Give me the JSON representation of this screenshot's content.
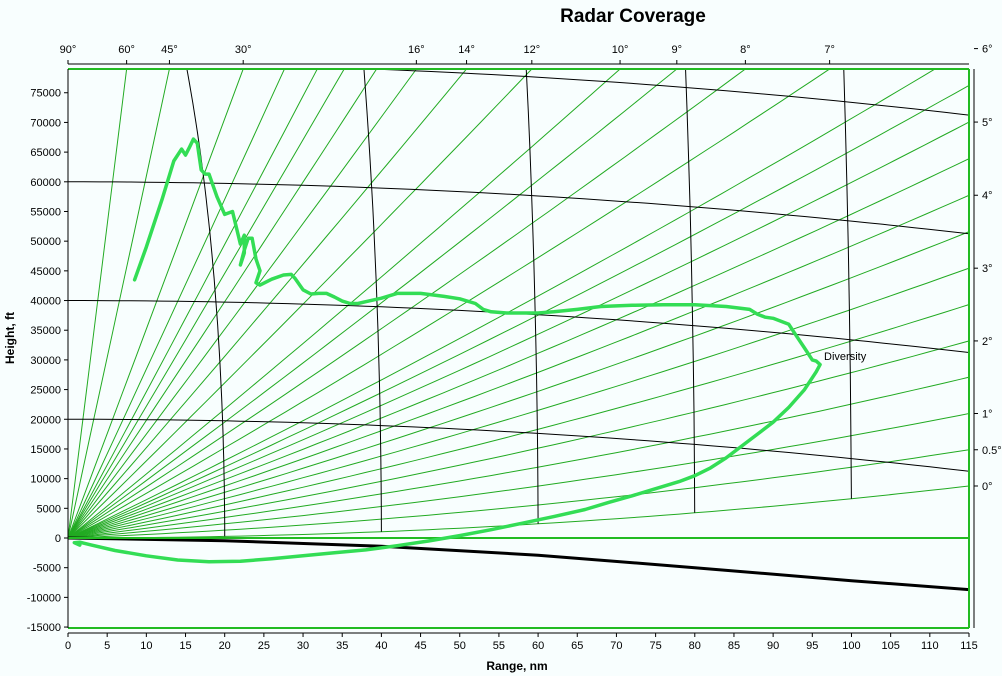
{
  "chart_data": {
    "type": "line",
    "title": "Radar Coverage",
    "xlabel": "Range, nm",
    "ylabel": "Height, ft",
    "xlim": [
      0,
      115
    ],
    "ylim": [
      -15000,
      79000
    ],
    "x_ticks": [
      0,
      5,
      10,
      15,
      20,
      25,
      30,
      35,
      40,
      45,
      50,
      55,
      60,
      65,
      70,
      75,
      80,
      85,
      90,
      95,
      100,
      105,
      110,
      115
    ],
    "y_ticks": [
      -15000,
      -10000,
      -5000,
      0,
      5000,
      10000,
      15000,
      20000,
      25000,
      30000,
      35000,
      40000,
      45000,
      50000,
      55000,
      60000,
      65000,
      70000,
      75000
    ],
    "elevation_angles_top": [
      {
        "label": "90°",
        "deg": 90
      },
      {
        "label": "60°",
        "deg": 60
      },
      {
        "label": "45°",
        "deg": 45
      },
      {
        "label": "30°",
        "deg": 30
      },
      {
        "label": "16°",
        "deg": 16
      },
      {
        "label": "14°",
        "deg": 14
      },
      {
        "label": "12°",
        "deg": 12
      },
      {
        "label": "10°",
        "deg": 10
      },
      {
        "label": "9°",
        "deg": 9
      },
      {
        "label": "8°",
        "deg": 8
      },
      {
        "label": "7°",
        "deg": 7
      }
    ],
    "elevation_angles_right": [
      {
        "label": "6°",
        "deg": 6
      },
      {
        "label": "5°",
        "deg": 5
      },
      {
        "label": "4°",
        "deg": 4
      },
      {
        "label": "3°",
        "deg": 3
      },
      {
        "label": "2°",
        "deg": 2
      },
      {
        "label": "1°",
        "deg": 1
      },
      {
        "label": "0.5°",
        "deg": 0.5
      },
      {
        "label": "0°",
        "deg": 0
      }
    ],
    "unlabeled_elevation_angles": [
      1.5,
      2.5,
      3.5,
      4.5,
      5.5,
      18,
      20,
      22,
      25
    ],
    "height_arcs_ft": [
      0,
      20000,
      40000,
      60000,
      80000
    ],
    "range_arcs_nm": [
      20,
      40,
      60,
      80,
      100
    ],
    "earth_curve": {
      "x": [
        0,
        20,
        40,
        60,
        80,
        100,
        115
      ],
      "y": [
        0,
        -450,
        -1400,
        -2900,
        -5000,
        -7200,
        -8700
      ]
    },
    "series": [
      {
        "name": "Diversity",
        "color": "#33dd55",
        "x": [
          8.5,
          10,
          12,
          13.5,
          14.5,
          15,
          15.5,
          16,
          16.5,
          17,
          17.5,
          18,
          19,
          20,
          21,
          22,
          22.5,
          22.5,
          22,
          22.5,
          23,
          23.5,
          24,
          24.5,
          24,
          24.5,
          26,
          27.5,
          28.5,
          29,
          30,
          31,
          32,
          33,
          34,
          35,
          36,
          37,
          38,
          40,
          42,
          45,
          48,
          50,
          52,
          53,
          54,
          56,
          58,
          60,
          62,
          65,
          68,
          72,
          76,
          80,
          84,
          87,
          88,
          89,
          90,
          92,
          93,
          94,
          95,
          95.5,
          96,
          95.5,
          94,
          92,
          90,
          88,
          86,
          84,
          82,
          80,
          78,
          75,
          72,
          69,
          66,
          62,
          58,
          54,
          50,
          46,
          42,
          38,
          34,
          30,
          26,
          22,
          18,
          14,
          10,
          6,
          3,
          1.5,
          0.8,
          1.5
        ],
        "y": [
          43500,
          49000,
          57000,
          63500,
          65500,
          64500,
          65800,
          67200,
          66500,
          62000,
          61300,
          61300,
          57500,
          54500,
          55000,
          49500,
          51000,
          48000,
          46000,
          48500,
          50500,
          50500,
          47000,
          45000,
          43000,
          42600,
          43600,
          44300,
          44400,
          43700,
          41800,
          41100,
          41200,
          41200,
          40600,
          39900,
          39500,
          39500,
          39800,
          40400,
          41200,
          41200,
          40700,
          40300,
          39500,
          38500,
          38100,
          37900,
          37900,
          37900,
          38100,
          38500,
          39000,
          39200,
          39300,
          39300,
          39000,
          38500,
          37700,
          37200,
          37000,
          36000,
          34000,
          32000,
          30000,
          29800,
          29200,
          28000,
          25000,
          22000,
          19500,
          17500,
          15500,
          13500,
          11800,
          10500,
          9500,
          8300,
          7100,
          6000,
          4800,
          3600,
          2500,
          1400,
          400,
          -500,
          -1300,
          -2000,
          -2500,
          -3000,
          -3500,
          -3900,
          -4000,
          -3700,
          -3000,
          -2100,
          -1200,
          -700,
          -800,
          -1200
        ]
      }
    ],
    "annotations": [
      {
        "text": "Diversity",
        "x": 96.5,
        "y": 30000
      }
    ],
    "grid": false
  },
  "colors": {
    "background": "#f8fefe",
    "angle_lines": "#22aa22",
    "frame": "#22bb22",
    "arcs": "#000000",
    "coverage": "#33dd55"
  }
}
